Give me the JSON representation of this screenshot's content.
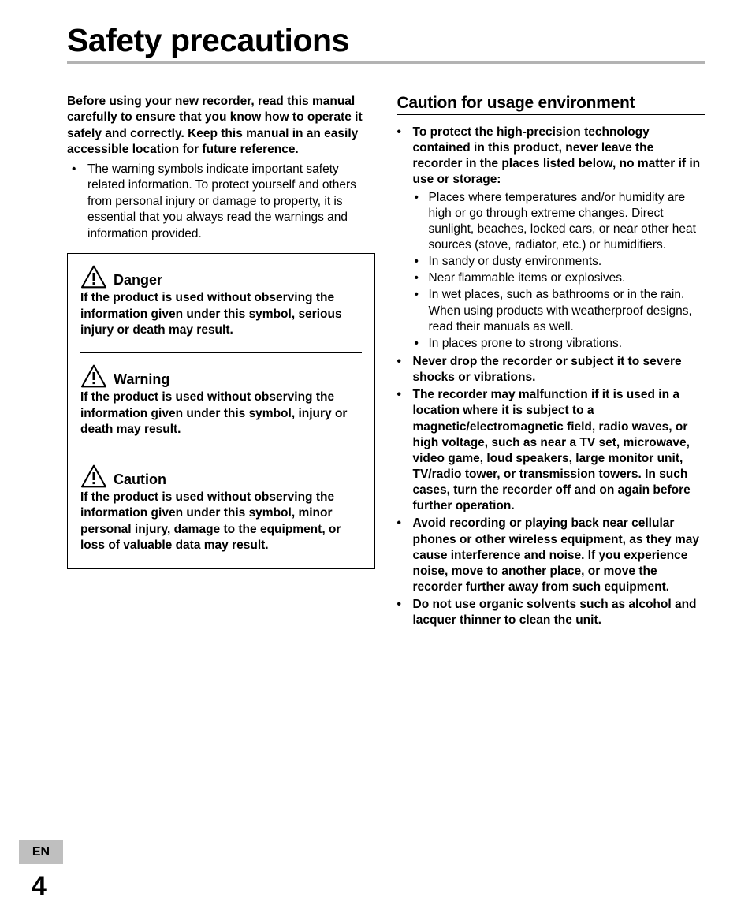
{
  "title": "Safety precautions",
  "intro_bold": "Before using your new recorder, read this manual carefully to ensure that you know how to operate it safely and correctly. Keep this manual in an easily accessible location for future reference.",
  "intro_bullet": "The warning symbols indicate important safety related information. To protect yourself and others from personal injury or damage to property, it is essential that you always read the warnings and information provided.",
  "warn": {
    "danger": {
      "label": "Danger",
      "body": "If the product is used without observing the information given under this symbol, serious injury or death may result."
    },
    "warning": {
      "label": "Warning",
      "body": "If the product is used without observing the information given under this symbol, injury or death may result."
    },
    "caution": {
      "label": "Caution",
      "body": "If the product is used without observing the information given under this symbol, minor personal injury, damage to the equipment, or loss of valuable data may result."
    }
  },
  "right": {
    "heading": "Caution for usage environment",
    "items": [
      {
        "text": "To protect the high-precision technology contained in this product, never leave the recorder in the places listed below, no matter if in use or storage:",
        "sub": [
          "Places where temperatures and/or humidity are high or go through extreme changes. Direct sunlight, beaches, locked cars, or near other heat sources (stove, radiator, etc.) or humidifiers.",
          "In sandy or dusty environments.",
          "Near flammable items or explosives.",
          "In wet places, such as bathrooms or in the rain. When using products with weatherproof designs, read their manuals as well.",
          "In places prone to strong vibrations."
        ]
      },
      {
        "text": "Never drop the recorder or subject it to severe shocks or vibrations."
      },
      {
        "text": "The recorder may malfunction if it is used in a location where it is subject to a magnetic/electromagnetic field, radio waves, or high voltage, such as near a TV set, microwave, video game, loud speakers, large monitor unit, TV/radio tower, or transmission towers. In such cases, turn the recorder off and on again before further operation."
      },
      {
        "text": "Avoid recording or playing back near cellular phones or other wireless equipment, as they may cause interference and noise. If you experience noise, move to another place, or move the recorder further away from such equipment."
      },
      {
        "text": "Do not use organic solvents such as alcohol and lacquer thinner to clean the unit."
      }
    ]
  },
  "lang_tab": "EN",
  "page_num": "4",
  "colors": {
    "rule_gray": "#b3b3b3",
    "tab_gray": "#bfbfbf",
    "text": "#000000",
    "bg": "#ffffff"
  }
}
